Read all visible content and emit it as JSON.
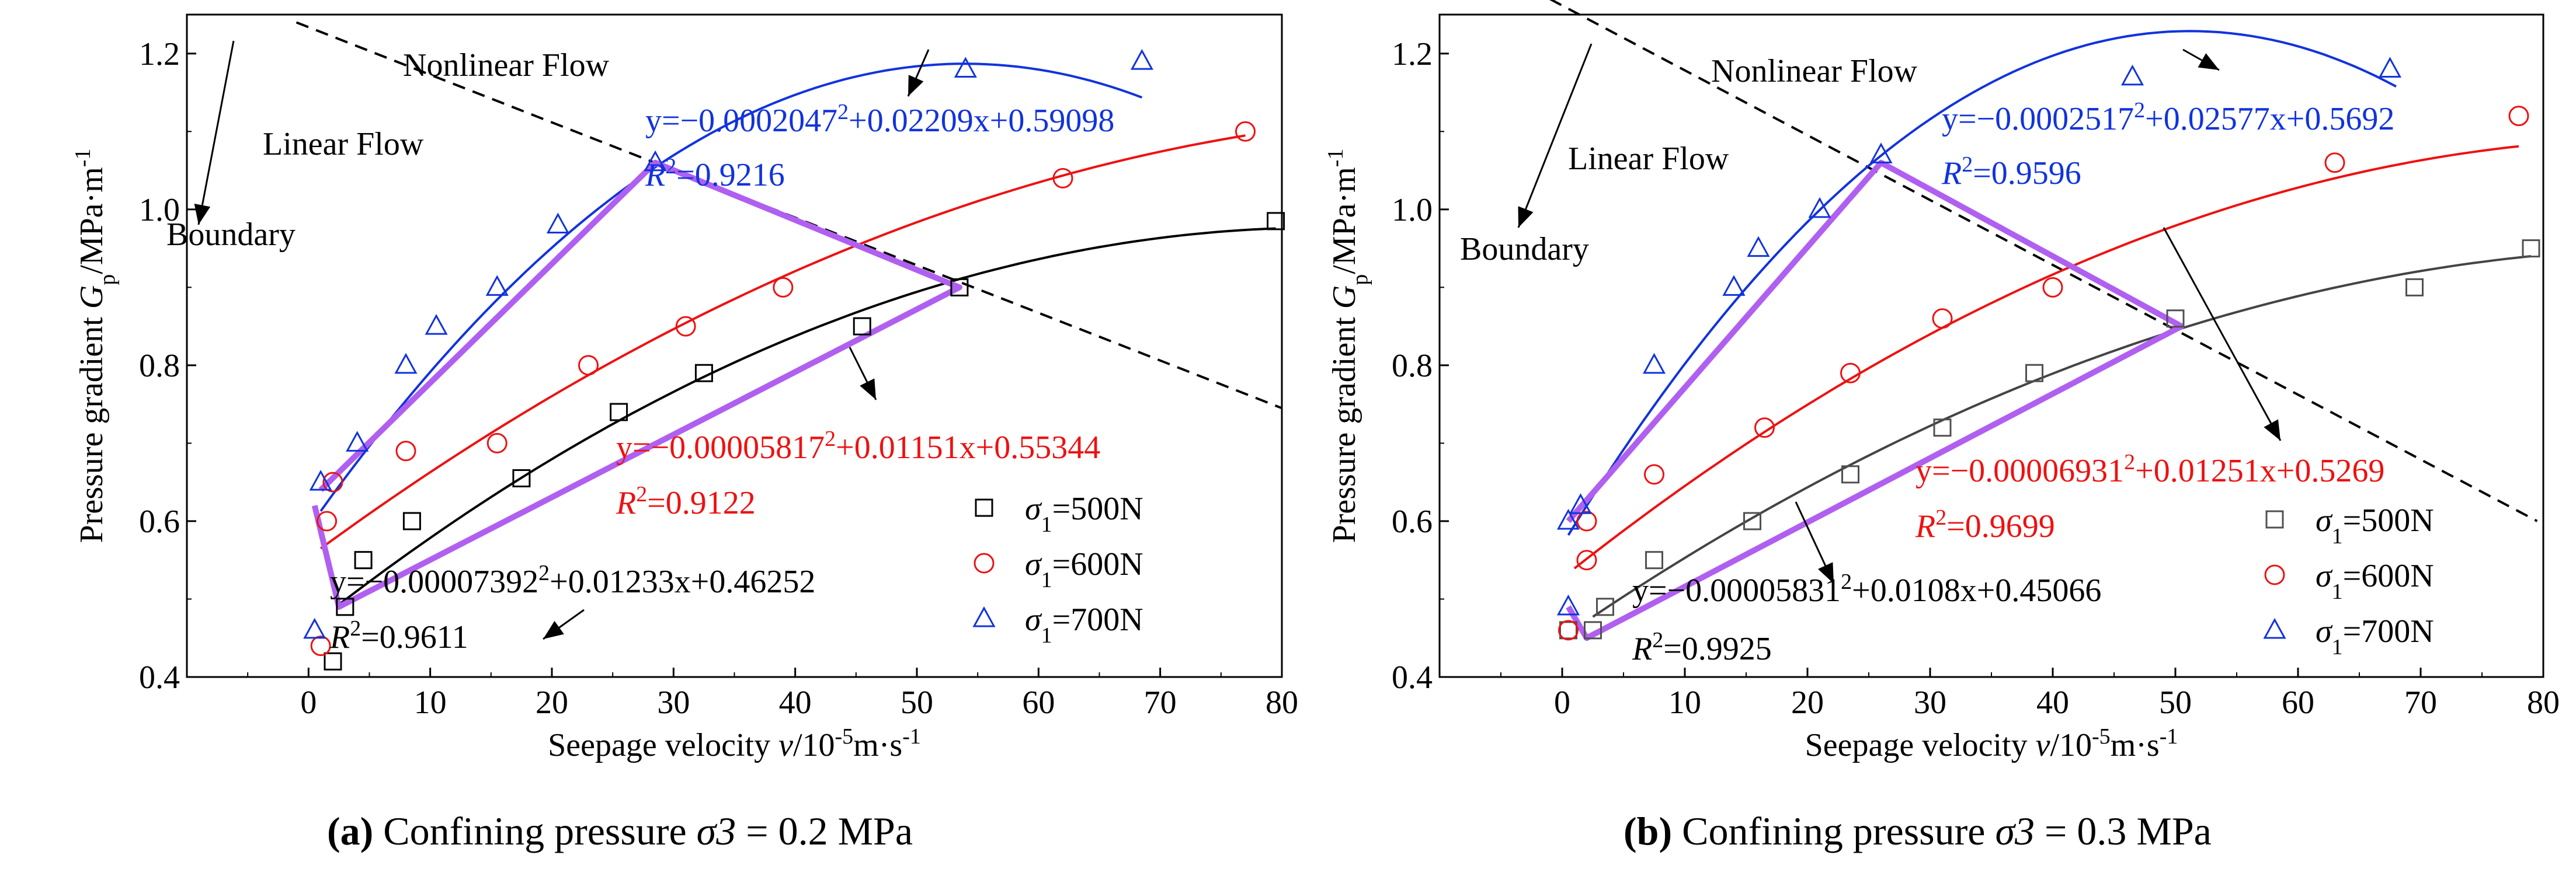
{
  "figure": {
    "captions": [
      {
        "label": "(a)",
        "text": " Confining pressure ",
        "symbol": "σ3",
        "value": " = 0.2 MPa"
      },
      {
        "label": "(b)",
        "text": " Confining pressure ",
        "symbol": "σ3",
        "value": " = 0.3 MPa"
      }
    ]
  },
  "colors": {
    "s500": "#000000",
    "s500_pts_b": "#505050",
    "s600": "#ee1111",
    "s700": "#1133dd",
    "envelope": "#b060f0",
    "boundary": "#000000"
  },
  "chart_data": [
    {
      "type": "scatter",
      "title": "(a) Confining pressure σ3 = 0.2 MPa",
      "xlabel": "Seepage velocity v/10-5m·s-1",
      "ylabel": "Pressure gradient Gp/MPa·m-1",
      "xlim": [
        -10,
        80
      ],
      "ylim": [
        0.4,
        1.25
      ],
      "xticks": [
        0,
        10,
        20,
        30,
        40,
        50,
        60,
        70,
        80
      ],
      "yticks": [
        0.4,
        0.6,
        0.8,
        1.0,
        1.2
      ],
      "series": [
        {
          "name": "σ1=500N",
          "marker": "square",
          "points": [
            [
              2.0,
              0.42
            ],
            [
              3.0,
              0.49
            ],
            [
              4.5,
              0.55
            ],
            [
              8.5,
              0.6
            ],
            [
              17.5,
              0.655
            ],
            [
              25.5,
              0.74
            ],
            [
              32.5,
              0.79
            ],
            [
              45.5,
              0.85
            ],
            [
              53.5,
              0.9
            ],
            [
              79.5,
              0.985
            ]
          ],
          "fit": {
            "a": -7.392e-05,
            "b": 0.01233,
            "c": 0.46252,
            "range": [
              2.5,
              79.5
            ]
          }
        },
        {
          "name": "σ1=600N",
          "marker": "circle",
          "points": [
            [
              1.0,
              0.44
            ],
            [
              1.5,
              0.6
            ],
            [
              2.0,
              0.65
            ],
            [
              8.0,
              0.69
            ],
            [
              15.5,
              0.7
            ],
            [
              23.0,
              0.8
            ],
            [
              31.0,
              0.85
            ],
            [
              39.0,
              0.9
            ],
            [
              62.0,
              1.04
            ],
            [
              77.0,
              1.1
            ]
          ],
          "fit": {
            "a": -5.817e-05,
            "b": 0.01151,
            "c": 0.55344,
            "range": [
              1.0,
              77.0
            ]
          }
        },
        {
          "name": "σ1=700N",
          "marker": "triangle",
          "points": [
            [
              0.5,
              0.46
            ],
            [
              1.0,
              0.65
            ],
            [
              4.0,
              0.7
            ],
            [
              8.0,
              0.8
            ],
            [
              10.5,
              0.85
            ],
            [
              15.5,
              0.9
            ],
            [
              20.5,
              0.98
            ],
            [
              28.5,
              1.06
            ],
            [
              54.0,
              1.18
            ],
            [
              68.5,
              1.19
            ]
          ],
          "fit": {
            "a": -0.0002047,
            "b": 0.02209,
            "c": 0.59098,
            "range": [
              1.0,
              68.5
            ]
          }
        }
      ],
      "equations": [
        {
          "series": "σ1=500N",
          "eq": "y=−0.00007392x2+0.01233x+0.46252",
          "r2": "=0.9611"
        },
        {
          "series": "σ1=600N",
          "eq": "y=−0.00005817x2+0.01151x+0.55344",
          "r2": "=0.9122"
        },
        {
          "series": "σ1=700N",
          "eq": "y=−0.0002047x2+0.02209x+0.59098",
          "r2": "=0.9216"
        }
      ],
      "boundary_line": [
        [
          -1,
          1.24
        ],
        [
          80,
          0.745
        ]
      ],
      "envelope": [
        [
          1.0,
          0.64
        ],
        [
          28.5,
          1.06
        ],
        [
          53.5,
          0.9
        ],
        [
          2.5,
          0.49
        ],
        [
          0.5,
          0.62
        ]
      ],
      "annotations": {
        "nonlinear": "Nonlinear Flow",
        "linear": "Linear Flow",
        "boundary": "Boundary"
      },
      "legend": [
        "σ1=500N",
        "σ1=600N",
        "σ1=700N"
      ],
      "legend_position": "bottom-right"
    },
    {
      "type": "scatter",
      "title": "(b) Confining pressure σ3 = 0.3 MPa",
      "xlabel": "Seepage velocity v/10-5m·s-1",
      "ylabel": "Pressure gradient Gp/MPa·m-1",
      "xlim": [
        -10,
        80
      ],
      "ylim": [
        0.4,
        1.25
      ],
      "xticks": [
        0,
        10,
        20,
        30,
        40,
        50,
        60,
        70,
        80
      ],
      "yticks": [
        0.4,
        0.6,
        0.8,
        1.0,
        1.2
      ],
      "series": [
        {
          "name": "σ1=500N",
          "marker": "square",
          "points": [
            [
              0.5,
              0.46
            ],
            [
              2.5,
              0.46
            ],
            [
              3.5,
              0.49
            ],
            [
              7.5,
              0.55
            ],
            [
              15.5,
              0.6
            ],
            [
              23.5,
              0.66
            ],
            [
              31.0,
              0.72
            ],
            [
              38.5,
              0.79
            ],
            [
              50.0,
              0.86
            ],
            [
              69.5,
              0.9
            ],
            [
              79.0,
              0.95
            ]
          ],
          "fit": {
            "a": -5.831e-05,
            "b": 0.0108,
            "c": 0.45066,
            "range": [
              2.5,
              79.0
            ]
          }
        },
        {
          "name": "σ1=600N",
          "marker": "circle",
          "points": [
            [
              0.5,
              0.46
            ],
            [
              2.0,
              0.55
            ],
            [
              2.0,
              0.6
            ],
            [
              7.5,
              0.66
            ],
            [
              16.5,
              0.72
            ],
            [
              23.5,
              0.79
            ],
            [
              31.0,
              0.86
            ],
            [
              40.0,
              0.9
            ],
            [
              63.0,
              1.06
            ],
            [
              78.0,
              1.12
            ]
          ],
          "fit": {
            "a": -6.931e-05,
            "b": 0.01251,
            "c": 0.5269,
            "range": [
              1.0,
              78.0
            ]
          }
        },
        {
          "name": "σ1=700N",
          "marker": "triangle",
          "points": [
            [
              0.5,
              0.49
            ],
            [
              0.5,
              0.6
            ],
            [
              1.5,
              0.62
            ],
            [
              7.5,
              0.8
            ],
            [
              14.0,
              0.9
            ],
            [
              16.0,
              0.95
            ],
            [
              21.0,
              1.0
            ],
            [
              26.0,
              1.07
            ],
            [
              46.5,
              1.17
            ],
            [
              67.5,
              1.18
            ]
          ],
          "fit": {
            "a": -0.0002517,
            "b": 0.02577,
            "c": 0.5692,
            "range": [
              0.5,
              68.0
            ]
          }
        }
      ],
      "equations": [
        {
          "series": "σ1=500N",
          "eq": "y=−0.00005831x2+0.0108x+0.45066",
          "r2": "=0.9925"
        },
        {
          "series": "σ1=600N",
          "eq": "y=−0.00006931x2+0.01251x+0.5269",
          "r2": "=0.9699"
        },
        {
          "series": "σ1=700N",
          "eq": "y=−0.0002517x2+0.02577x+0.5692",
          "r2": "=0.9596"
        }
      ],
      "boundary_line": [
        [
          -1,
          1.27
        ],
        [
          79.5,
          0.6
        ]
      ],
      "envelope": [
        [
          0.5,
          0.6
        ],
        [
          26.0,
          1.06
        ],
        [
          50.5,
          0.85
        ],
        [
          2.0,
          0.45
        ],
        [
          0.5,
          0.49
        ]
      ],
      "annotations": {
        "nonlinear": "Nonlinear Flow",
        "linear": "Linear Flow",
        "boundary": "Boundary"
      },
      "legend": [
        "σ1=500N",
        "σ1=600N",
        "σ1=700N"
      ],
      "legend_position": "bottom-right"
    }
  ]
}
